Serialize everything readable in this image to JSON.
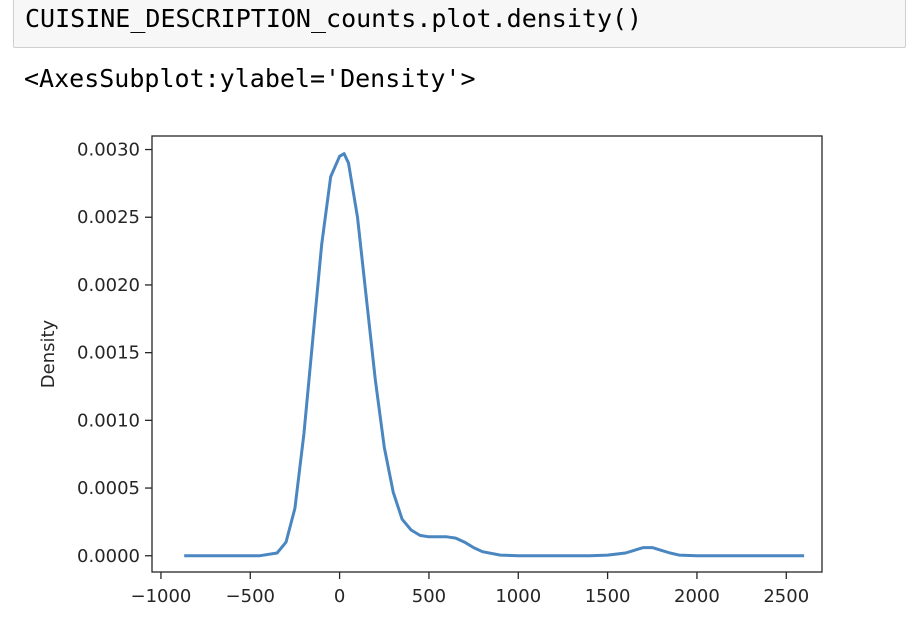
{
  "cell": {
    "code": "CUISINE_DESCRIPTION_counts.plot.density()",
    "output_repr": "<AxesSubplot:ylabel='Density'>"
  },
  "colors": {
    "line": "#4a86c0",
    "axes": "#262626",
    "cell_bg": "#f7f7f7",
    "cell_border": "#cfcfcf"
  },
  "chart_data": {
    "type": "line",
    "title": "",
    "xlabel": "",
    "ylabel": "Density",
    "xlim": [
      -1050,
      2700
    ],
    "ylim": [
      -0.00012,
      0.0031
    ],
    "xticks": [
      -1000,
      -500,
      0,
      500,
      1000,
      1500,
      2000,
      2500
    ],
    "xtick_labels": [
      "−1000",
      "−500",
      "0",
      "500",
      "1000",
      "1500",
      "2000",
      "2500"
    ],
    "yticks": [
      0.0,
      0.0005,
      0.001,
      0.0015,
      0.002,
      0.0025,
      0.003
    ],
    "ytick_labels": [
      "0.0000",
      "0.0005",
      "0.0010",
      "0.0015",
      "0.0020",
      "0.0025",
      "0.0030"
    ],
    "grid": false,
    "legend": "none",
    "series": [
      {
        "x": [
          -870,
          -600,
          -450,
          -350,
          -300,
          -250,
          -200,
          -150,
          -100,
          -50,
          0,
          25,
          50,
          100,
          150,
          200,
          250,
          300,
          350,
          400,
          450,
          500,
          550,
          600,
          650,
          700,
          750,
          800,
          900,
          1000,
          1200,
          1400,
          1500,
          1600,
          1650,
          1700,
          1750,
          1800,
          1850,
          1900,
          2000,
          2200,
          2400,
          2600
        ],
        "y": [
          0.0,
          0.0,
          0.0,
          2e-05,
          0.0001,
          0.00035,
          0.0009,
          0.0016,
          0.0023,
          0.0028,
          0.00295,
          0.00297,
          0.0029,
          0.0025,
          0.0019,
          0.0013,
          0.0008,
          0.00047,
          0.00027,
          0.00019,
          0.00015,
          0.00014,
          0.00014,
          0.00014,
          0.00013,
          0.0001,
          6e-05,
          3e-05,
          5e-06,
          0.0,
          0.0,
          0.0,
          5e-06,
          2e-05,
          4e-05,
          6e-05,
          6e-05,
          4e-05,
          2e-05,
          5e-06,
          0.0,
          0.0,
          0.0,
          0.0
        ]
      }
    ]
  }
}
